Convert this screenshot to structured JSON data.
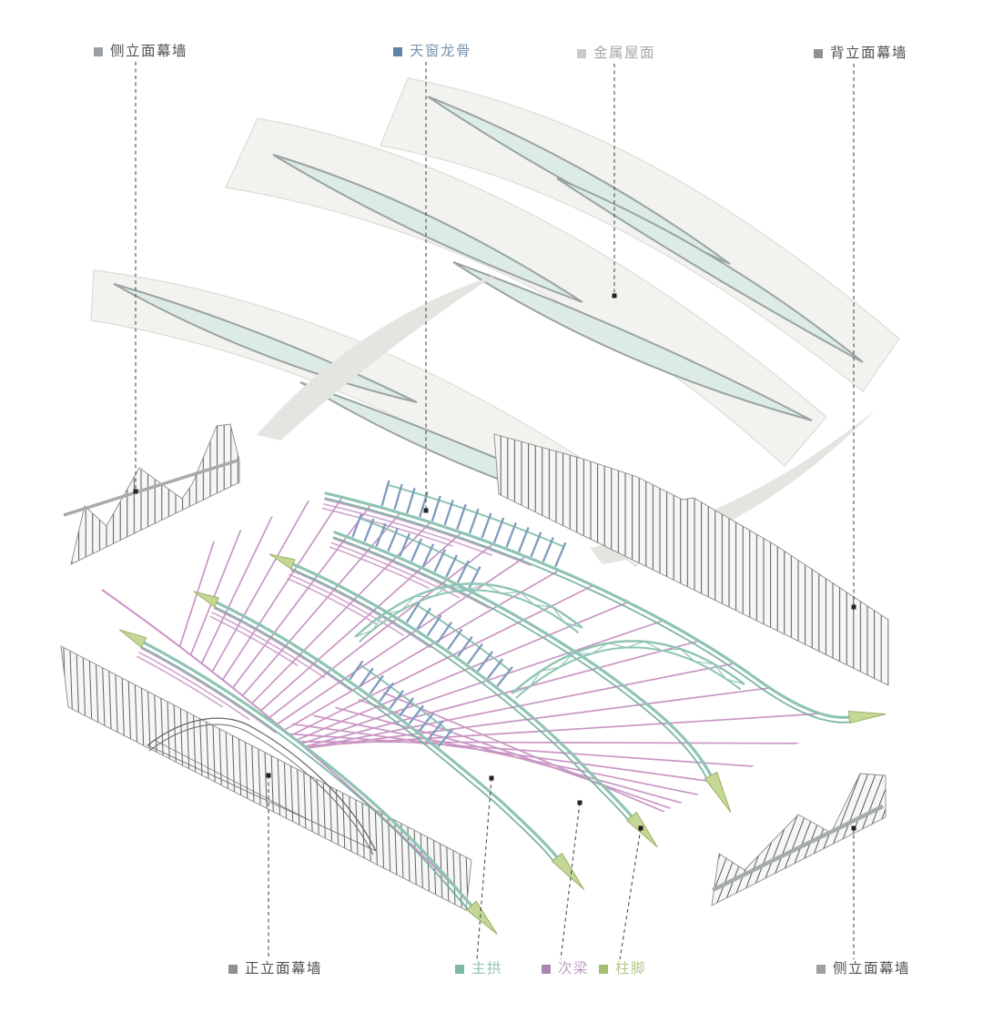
{
  "legend_top": [
    {
      "label": "侧立面幕墙",
      "swatch": "#9aa0a3",
      "color": "#4c5154"
    },
    {
      "label": "天窗龙骨",
      "swatch": "#5d83a6",
      "color": "#7796b3"
    },
    {
      "label": "金属屋面",
      "swatch": "#c7cbcd",
      "color": "#a4a8aa"
    },
    {
      "label": "背立面幕墙",
      "swatch": "#8d9295",
      "color": "#4c5154"
    }
  ],
  "legend_bottom": [
    {
      "label": "正立面幕墙",
      "swatch": "#8d9295",
      "color": "#4c5154"
    },
    {
      "label": "主拱",
      "swatch": "#7cb8a6",
      "color": "#92c3b3"
    },
    {
      "label": "次梁",
      "swatch": "#a886b3",
      "color": "#bf9ec6"
    },
    {
      "label": "柱脚",
      "swatch": "#a4bf6e",
      "color": "#b3c889"
    },
    {
      "label": "侧立面幕墙",
      "swatch": "#9aa0a3",
      "color": "#4c5154"
    }
  ],
  "colors": {
    "main_arch": "#8ec4b3",
    "main_arch_dark": "#6fae9c",
    "secondary_beam": "#c996c4",
    "skylight_keel": "#7e9cbd",
    "column_foot": "#c5d794",
    "column_foot_edge": "#9cb169",
    "glass": "#dcebe7",
    "glass_edge": "#9aa3a2",
    "roof_fill": "#f2f2ef",
    "roof_edge": "#dcdcd7",
    "roof_shadow": "#e4e4e0",
    "wall_fill": "#f6f6f5",
    "wall_edge": "#8b8b8b",
    "wall_beam": "#a6abae",
    "hatch": "#3f3f3f",
    "dome_line": "#666666",
    "leader": "#4c4c4c",
    "dot": "#222222"
  }
}
